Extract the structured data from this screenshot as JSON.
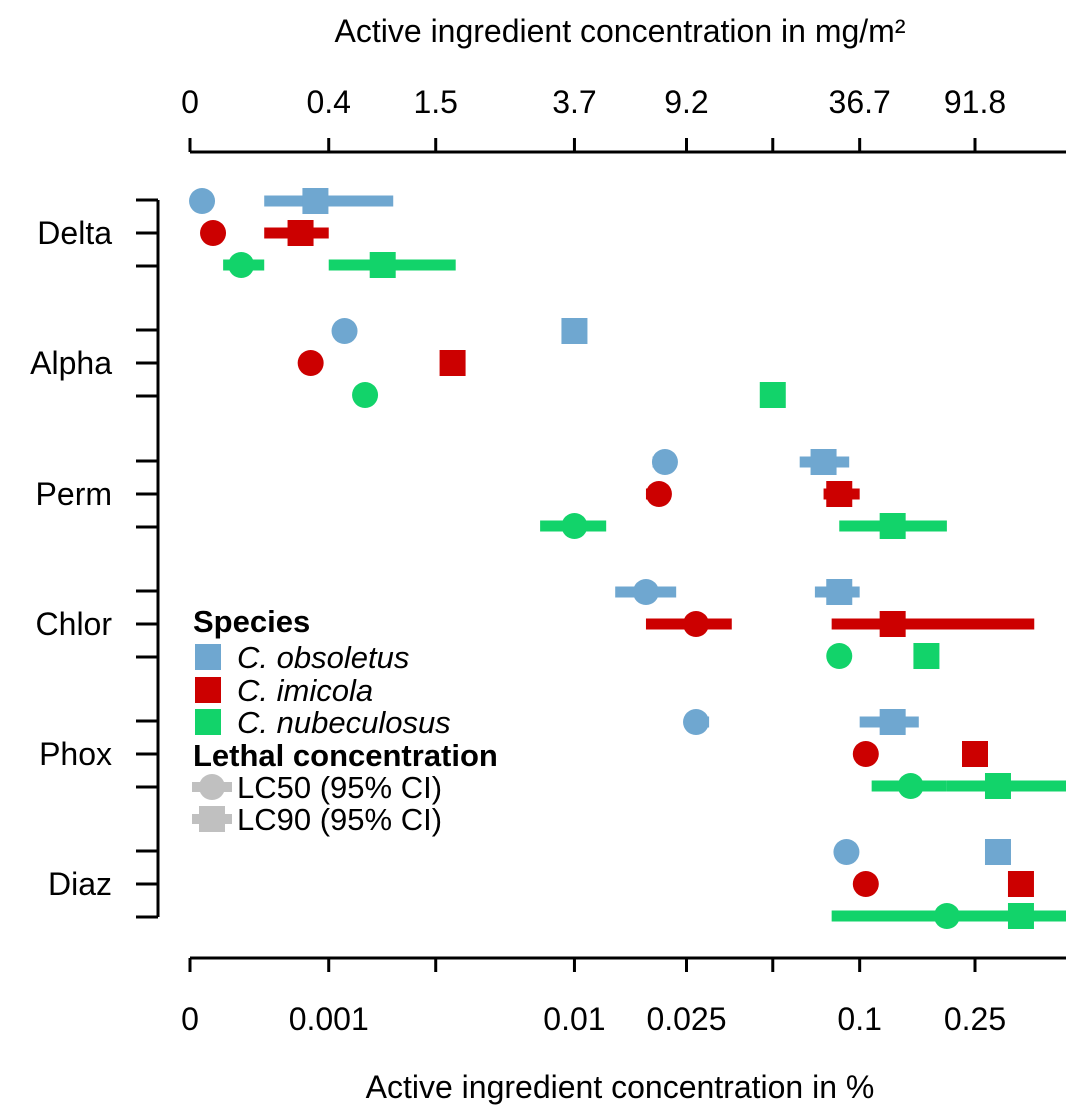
{
  "chart_data": {
    "type": "dot-interval",
    "top_axis": {
      "label": "Active ingredient concentration in mg/m²",
      "ticks": [
        "0",
        "0.4",
        "1.5",
        "3.7",
        "9.2",
        "",
        "36.7",
        "91.8"
      ]
    },
    "bottom_axis": {
      "label": "Active ingredient concentration in %",
      "scale": "log10(x + 0.0005)",
      "range": [
        0,
        0.8
      ],
      "tick_values": [
        0,
        0.001,
        0.003,
        0.01,
        0.025,
        0.05,
        0.1,
        0.25
      ],
      "ticks": [
        "0",
        "0.001",
        "",
        "0.01",
        "0.025",
        "",
        "0.1",
        "0.25"
      ]
    },
    "categories": [
      "Delta",
      "Alpha",
      "Perm",
      "Chlor",
      "Phox",
      "Diaz"
    ],
    "series": [
      {
        "name": "C. obsoletus",
        "color": "#6fa7d0",
        "lc50": [
          {
            "value": 5e-05
          },
          {
            "value": 0.0012
          },
          {
            "value": 0.021,
            "lo": 0.019,
            "hi": 0.023
          },
          {
            "value": 0.018,
            "lo": 0.014,
            "hi": 0.023
          },
          {
            "value": 0.027,
            "lo": 0.025,
            "hi": 0.03
          },
          {
            "value": 0.09
          }
        ],
        "lc90": [
          {
            "value": 0.00085,
            "lo": 0.0004,
            "hi": 0.002
          },
          {
            "value": 0.01
          },
          {
            "value": 0.075,
            "lo": 0.062,
            "hi": 0.092
          },
          {
            "value": 0.085,
            "lo": 0.07,
            "hi": 0.1
          },
          {
            "value": 0.13,
            "lo": 0.1,
            "hi": 0.16
          },
          {
            "value": 0.3
          }
        ]
      },
      {
        "name": "C. imicola",
        "color": "#cc0000",
        "lc50": [
          {
            "value": 0.0001
          },
          {
            "value": 0.0008
          },
          {
            "value": 0.02,
            "lo": 0.018,
            "hi": 0.022
          },
          {
            "value": 0.027,
            "lo": 0.018,
            "hi": 0.036
          },
          {
            "value": 0.105
          },
          {
            "value": 0.105
          }
        ],
        "lc90": [
          {
            "value": 0.0007,
            "lo": 0.0004,
            "hi": 0.001
          },
          {
            "value": 0.0035
          },
          {
            "value": 0.085,
            "lo": 0.075,
            "hi": 0.1
          },
          {
            "value": 0.13,
            "lo": 0.08,
            "hi": 0.4
          },
          {
            "value": 0.25
          },
          {
            "value": 0.36
          }
        ]
      },
      {
        "name": "C. nubeculosus",
        "color": "#12d36a",
        "lc50": [
          {
            "value": 0.00025,
            "lo": 0.00015,
            "hi": 0.0004
          },
          {
            "value": 0.0015
          },
          {
            "value": 0.01,
            "lo": 0.0075,
            "hi": 0.013
          },
          {
            "value": 0.085
          },
          {
            "value": 0.15,
            "lo": 0.11,
            "hi": 0.2
          },
          {
            "value": 0.2,
            "lo": 0.08,
            "hi": 0.28
          }
        ],
        "lc90": [
          {
            "value": 0.0018,
            "lo": 0.001,
            "hi": 0.0036
          },
          {
            "value": 0.05
          },
          {
            "value": 0.13,
            "lo": 0.085,
            "hi": 0.2
          },
          {
            "value": 0.17
          },
          {
            "value": 0.3,
            "lo": 0.2,
            "hi": 0.8
          },
          {
            "value": 0.36,
            "lo": 0.25,
            "hi": 0.8
          }
        ]
      }
    ],
    "legend": {
      "position": "lower-left",
      "species_title": "Species",
      "lethal_title": "Lethal concentration",
      "lc50_label": "LC50 (95% CI)",
      "lc90_label": "LC90 (95% CI)",
      "marker_color": "#c0c0c0"
    }
  }
}
